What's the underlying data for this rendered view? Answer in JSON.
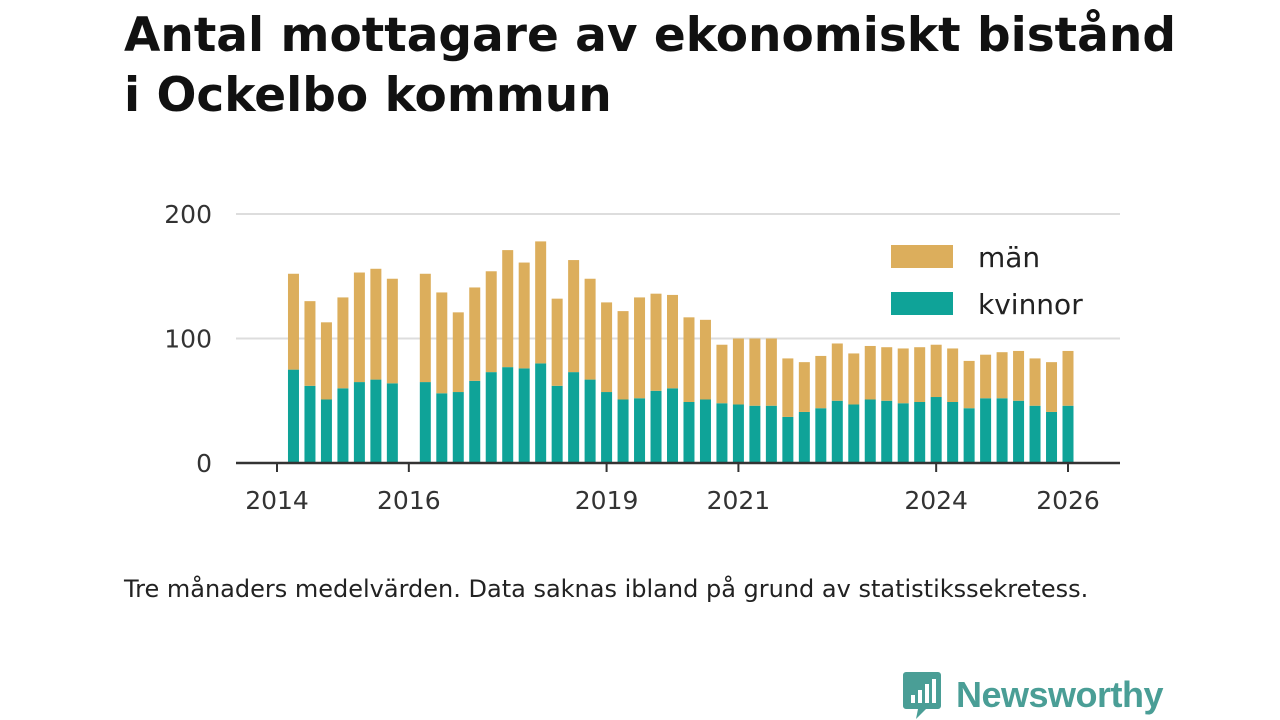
{
  "title_lines": [
    "Antal mottagare av ekonomiskt bistånd",
    "i Ockelbo kommun"
  ],
  "caption": "Tre månaders medelvärden. Data saknas ibland på grund av statistikssekretess.",
  "brand": "Newsworthy",
  "colors": {
    "kvinnor": "#0fa398",
    "man": "#dcae5c",
    "grid": "#dddddd",
    "axis": "#333333",
    "brand": "#4a9e96"
  },
  "chart_data": {
    "type": "bar",
    "stacked": true,
    "title": "Antal mottagare av ekonomiskt bistånd i Ockelbo kommun",
    "ylim": [
      0,
      200
    ],
    "yticks": [
      0,
      100,
      200
    ],
    "xlim": [
      2014.0,
      2026.4
    ],
    "xticks": [
      2014,
      2016,
      2019,
      2021,
      2024,
      2026
    ],
    "legend_position": "top-right",
    "series": [
      {
        "key": "kvinnor",
        "name": "kvinnor",
        "x": [
          2014.25,
          2014.5,
          2014.75,
          2015.0,
          2015.25,
          2015.5,
          2015.75,
          2016.25,
          2016.5,
          2016.75,
          2017.0,
          2017.25,
          2017.5,
          2017.75,
          2018.0,
          2018.25,
          2018.5,
          2018.75,
          2019.0,
          2019.25,
          2019.5,
          2019.75,
          2020.0,
          2020.25,
          2020.5,
          2020.75,
          2021.0,
          2021.25,
          2021.5,
          2021.75,
          2022.0,
          2022.25,
          2022.5,
          2022.75,
          2023.0,
          2023.25,
          2023.5,
          2023.75,
          2024.0,
          2024.25,
          2024.5,
          2024.75,
          2025.0,
          2025.25,
          2025.5,
          2025.75,
          2026.0
        ],
        "values": [
          75,
          62,
          51,
          60,
          65,
          67,
          64,
          65,
          56,
          57,
          66,
          73,
          77,
          76,
          80,
          62,
          73,
          67,
          57,
          51,
          52,
          58,
          60,
          49,
          51,
          48,
          47,
          46,
          46,
          37,
          41,
          44,
          50,
          47,
          51,
          50,
          48,
          49,
          53,
          49,
          44,
          52,
          52,
          50,
          46,
          41,
          46
        ]
      },
      {
        "key": "man",
        "name": "män",
        "x": [
          2014.25,
          2014.5,
          2014.75,
          2015.0,
          2015.25,
          2015.5,
          2015.75,
          2016.25,
          2016.5,
          2016.75,
          2017.0,
          2017.25,
          2017.5,
          2017.75,
          2018.0,
          2018.25,
          2018.5,
          2018.75,
          2019.0,
          2019.25,
          2019.5,
          2019.75,
          2020.0,
          2020.25,
          2020.5,
          2020.75,
          2021.0,
          2021.25,
          2021.5,
          2021.75,
          2022.0,
          2022.25,
          2022.5,
          2022.75,
          2023.0,
          2023.25,
          2023.5,
          2023.75,
          2024.0,
          2024.25,
          2024.5,
          2024.75,
          2025.0,
          2025.25,
          2025.5,
          2025.75,
          2026.0
        ],
        "values": [
          77,
          68,
          62,
          73,
          88,
          89,
          84,
          87,
          81,
          64,
          75,
          81,
          94,
          85,
          98,
          70,
          90,
          81,
          72,
          71,
          81,
          78,
          75,
          68,
          64,
          47,
          53,
          54,
          54,
          47,
          40,
          42,
          46,
          41,
          43,
          43,
          44,
          44,
          42,
          43,
          38,
          35,
          37,
          40,
          38,
          40,
          44
        ]
      }
    ]
  }
}
